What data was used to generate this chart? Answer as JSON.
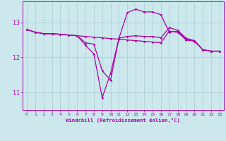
{
  "background_color": "#cce8ec",
  "grid_color": "#aacccc",
  "line_color": "#aa00aa",
  "xlabel": "Windchill (Refroidissement éolien,°C)",
  "xlim": [
    -0.5,
    23.5
  ],
  "ylim": [
    10.5,
    13.6
  ],
  "yticks": [
    11,
    12,
    13
  ],
  "xticks": [
    0,
    1,
    2,
    3,
    4,
    5,
    6,
    7,
    8,
    9,
    10,
    11,
    12,
    13,
    14,
    15,
    16,
    17,
    18,
    19,
    20,
    21,
    22,
    23
  ],
  "hours": [
    0,
    1,
    2,
    3,
    4,
    5,
    6,
    7,
    8,
    9,
    10,
    11,
    12,
    13,
    14,
    15,
    16,
    17,
    18,
    19,
    20,
    21,
    22,
    23
  ],
  "line1": [
    12.8,
    12.72,
    12.68,
    12.68,
    12.66,
    12.64,
    12.62,
    12.6,
    12.58,
    12.56,
    12.54,
    12.52,
    12.5,
    12.48,
    12.46,
    12.44,
    12.42,
    12.75,
    12.72,
    12.5,
    12.46,
    12.22,
    12.18,
    12.18
  ],
  "line2": [
    12.8,
    12.72,
    12.68,
    12.68,
    12.66,
    12.64,
    12.62,
    12.35,
    12.1,
    10.85,
    11.55,
    12.55,
    13.28,
    13.38,
    13.3,
    13.3,
    13.22,
    12.72,
    12.75,
    12.52,
    12.48,
    12.22,
    12.18,
    12.18
  ],
  "line3": [
    12.8,
    12.72,
    12.68,
    12.68,
    12.66,
    12.64,
    12.62,
    12.42,
    12.38,
    11.62,
    11.35,
    12.55,
    12.6,
    12.62,
    12.6,
    12.6,
    12.56,
    12.85,
    12.78,
    12.55,
    12.48,
    12.22,
    12.18,
    12.18
  ]
}
